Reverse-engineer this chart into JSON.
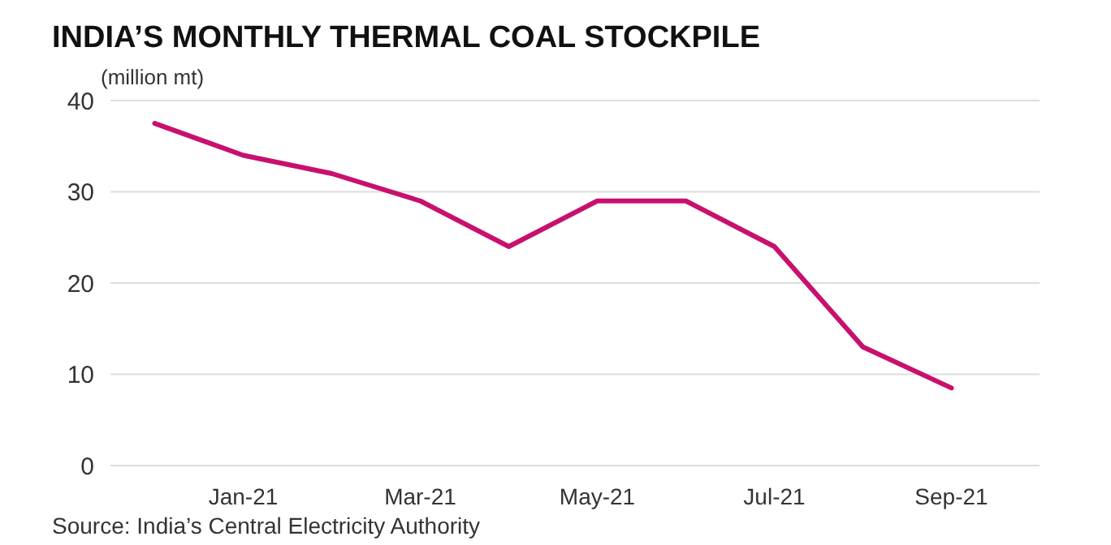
{
  "chart_data": {
    "type": "line",
    "title": "INDIA’S MONTHLY THERMAL COAL STOCKPILE",
    "ylabel": "(million mt)",
    "categories": [
      null,
      "Jan-21",
      null,
      "Mar-21",
      null,
      "May-21",
      null,
      "Jul-21",
      null,
      "Sep-21"
    ],
    "series": [
      {
        "color": "#c8106e",
        "values": [
          37.5,
          34,
          32,
          29,
          24,
          29,
          29,
          24,
          13,
          8.5
        ]
      }
    ],
    "ylim": [
      0,
      40
    ],
    "yticks": [
      0,
      10,
      20,
      30,
      40
    ],
    "grid": "y",
    "marker": "none",
    "line_style": "solid",
    "annotations": [
      "Source: India’s Central Electricity Authority"
    ]
  }
}
